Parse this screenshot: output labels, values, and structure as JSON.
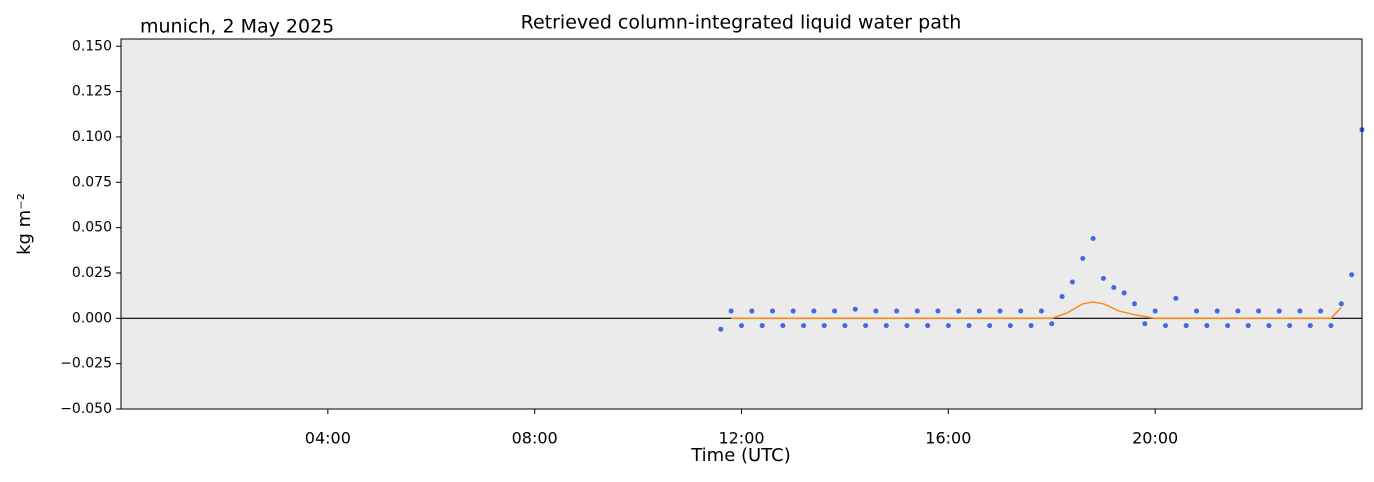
{
  "chart_data": {
    "type": "scatter",
    "title": "Retrieved column-integrated liquid water path",
    "subtitle": "munich, 2 May 2025",
    "xlabel": "Time (UTC)",
    "ylabel": "kg m⁻²",
    "xlim": [
      0,
      24
    ],
    "xticks": [
      {
        "value": 4,
        "label": "04:00"
      },
      {
        "value": 8,
        "label": "08:00"
      },
      {
        "value": 12,
        "label": "12:00"
      },
      {
        "value": 16,
        "label": "16:00"
      },
      {
        "value": 20,
        "label": "20:00"
      }
    ],
    "ylim": [
      -0.05,
      0.154
    ],
    "yticks": [
      {
        "value": -0.05,
        "label": "−0.050"
      },
      {
        "value": -0.025,
        "label": "−0.025"
      },
      {
        "value": 0,
        "label": "0.000"
      },
      {
        "value": 0.025,
        "label": "0.025"
      },
      {
        "value": 0.05,
        "label": "0.050"
      },
      {
        "value": 0.075,
        "label": "0.075"
      },
      {
        "value": 0.1,
        "label": "0.100"
      },
      {
        "value": 0.125,
        "label": "0.125"
      },
      {
        "value": 0.15,
        "label": "0.150"
      }
    ],
    "hline": 0,
    "background": "#ebebeb",
    "series": [
      {
        "color": "#4169e1",
        "style": "points",
        "x": [
          11.6,
          11.8,
          12.0,
          12.2,
          12.4,
          12.6,
          12.8,
          13.0,
          13.2,
          13.4,
          13.6,
          13.8,
          14.0,
          14.2,
          14.4,
          14.6,
          14.8,
          15.0,
          15.2,
          15.4,
          15.6,
          15.8,
          16.0,
          16.2,
          16.4,
          16.6,
          16.8,
          17.0,
          17.2,
          17.4,
          17.6,
          17.8,
          18.0,
          18.2,
          18.4,
          18.6,
          18.8,
          19.0,
          19.2,
          19.4,
          19.6,
          19.8,
          20.0,
          20.2,
          20.4,
          20.6,
          20.8,
          21.0,
          21.2,
          21.4,
          21.6,
          21.8,
          22.0,
          22.2,
          22.4,
          22.6,
          22.8,
          23.0,
          23.2,
          23.4,
          23.6,
          23.8,
          24.0
        ],
        "values": [
          -0.006,
          0.004,
          -0.004,
          0.004,
          -0.004,
          0.004,
          -0.004,
          0.004,
          -0.004,
          0.004,
          -0.004,
          0.004,
          -0.004,
          0.005,
          -0.004,
          0.004,
          -0.004,
          0.004,
          -0.004,
          0.004,
          -0.004,
          0.004,
          -0.004,
          0.004,
          -0.004,
          0.004,
          -0.004,
          0.004,
          -0.004,
          0.004,
          -0.004,
          0.004,
          -0.003,
          0.012,
          0.02,
          0.033,
          0.044,
          0.022,
          0.017,
          0.014,
          0.008,
          -0.003,
          0.004,
          -0.004,
          0.011,
          -0.004,
          0.004,
          -0.004,
          0.004,
          -0.004,
          0.004,
          -0.004,
          0.004,
          -0.004,
          0.004,
          -0.004,
          0.004,
          -0.004,
          0.004,
          -0.004,
          0.008,
          0.024,
          0.104
        ]
      },
      {
        "color": "#ff8c1a",
        "style": "line",
        "x": [
          11.8,
          18.0,
          18.3,
          18.6,
          18.8,
          19.0,
          19.3,
          19.6,
          20.0,
          20.5,
          23.4,
          23.6
        ],
        "values": [
          0.0,
          0.0,
          0.003,
          0.008,
          0.009,
          0.008,
          0.004,
          0.002,
          0.0,
          0.0,
          0.0,
          0.006
        ]
      }
    ]
  }
}
